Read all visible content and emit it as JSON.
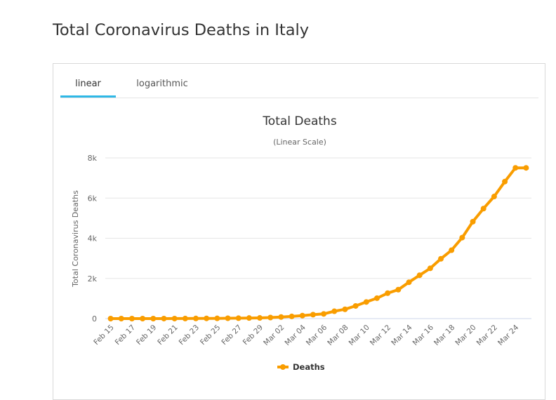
{
  "page": {
    "title": "Total Coronavirus Deaths in Italy"
  },
  "tabs": [
    {
      "label": "linear",
      "active": true
    },
    {
      "label": "logarithmic",
      "active": false
    }
  ],
  "colors": {
    "series": "#f99d00",
    "active_tab": "#2fb8e6",
    "grid": "#e6e6e6"
  },
  "chart_data": {
    "type": "line",
    "title": "Total Deaths",
    "subtitle": "(Linear Scale)",
    "ylabel": "Total Coronavirus Deaths",
    "xlabel": "",
    "ylim": [
      0,
      8000
    ],
    "yticks": [
      0,
      2000,
      4000,
      6000,
      8000
    ],
    "ytick_labels": [
      "0",
      "2k",
      "4k",
      "6k",
      "8k"
    ],
    "grid": true,
    "legend": "bottom-center",
    "x": [
      "Feb 15",
      "Feb 16",
      "Feb 17",
      "Feb 18",
      "Feb 19",
      "Feb 20",
      "Feb 21",
      "Feb 22",
      "Feb 23",
      "Feb 24",
      "Feb 25",
      "Feb 26",
      "Feb 27",
      "Feb 28",
      "Feb 29",
      "Mar 01",
      "Mar 02",
      "Mar 03",
      "Mar 04",
      "Mar 05",
      "Mar 06",
      "Mar 07",
      "Mar 08",
      "Mar 09",
      "Mar 10",
      "Mar 11",
      "Mar 12",
      "Mar 13",
      "Mar 14",
      "Mar 15",
      "Mar 16",
      "Mar 17",
      "Mar 18",
      "Mar 19",
      "Mar 20",
      "Mar 21",
      "Mar 22",
      "Mar 23",
      "Mar 24",
      "Mar 25"
    ],
    "xtick_labels": [
      "Feb 15",
      "Feb 17",
      "Feb 19",
      "Feb 21",
      "Feb 23",
      "Feb 25",
      "Feb 27",
      "Feb 29",
      "Mar 02",
      "Mar 04",
      "Mar 06",
      "Mar 08",
      "Mar 10",
      "Mar 12",
      "Mar 14",
      "Mar 16",
      "Mar 18",
      "Mar 20",
      "Mar 22",
      "Mar 24"
    ],
    "series": [
      {
        "name": "Deaths",
        "values": [
          0,
          0,
          0,
          0,
          0,
          1,
          2,
          3,
          7,
          10,
          12,
          17,
          21,
          29,
          34,
          52,
          79,
          107,
          148,
          197,
          233,
          366,
          463,
          631,
          827,
          1016,
          1266,
          1441,
          1809,
          2158,
          2503,
          2978,
          3405,
          4032,
          4825,
          5476,
          6077,
          6820,
          7503,
          7503
        ]
      }
    ]
  }
}
